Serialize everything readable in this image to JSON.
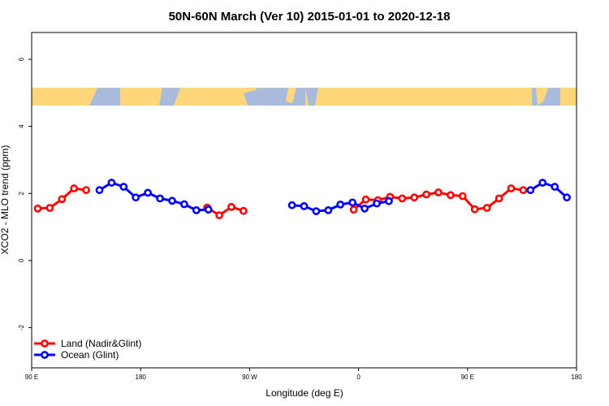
{
  "chart_data": {
    "type": "line",
    "title": "50N-60N March (Ver 10)   2015-01-01 to 2020-12-18",
    "xlabel": "Longitude (deg E)",
    "ylabel": "XCO2 - MLO trend (ppm)",
    "xlim": [
      90,
      540
    ],
    "ylim": [
      -3.2,
      6.8
    ],
    "xticks": [
      {
        "value": 90,
        "label": "90 E"
      },
      {
        "value": 180,
        "label": "180"
      },
      {
        "value": 270,
        "label": "90 W"
      },
      {
        "value": 360,
        "label": "0"
      },
      {
        "value": 450,
        "label": "90 E"
      },
      {
        "value": 540,
        "label": "180"
      }
    ],
    "yticks": [
      {
        "value": -2,
        "label": "-2"
      },
      {
        "value": 0,
        "label": "0"
      },
      {
        "value": 2,
        "label": "2"
      },
      {
        "value": 4,
        "label": "4"
      },
      {
        "value": 6,
        "label": "6"
      }
    ],
    "map_strip": {
      "ymin": 4.62,
      "ymax": 5.15,
      "ocean_color": "#a9bbdc",
      "land_color": "#ffd77a"
    },
    "series": [
      {
        "name": "Land (Nadir&Glint)",
        "color": "#ff0000",
        "segments": [
          [
            [
              95,
              1.55
            ],
            [
              105,
              1.57
            ],
            [
              115,
              1.83
            ],
            [
              125,
              2.15
            ],
            [
              135,
              2.1
            ]
          ],
          [
            [
              235,
              1.58
            ],
            [
              245,
              1.35
            ],
            [
              255,
              1.6
            ],
            [
              265,
              1.48
            ]
          ],
          [
            [
              356,
              1.52
            ],
            [
              366,
              1.82
            ],
            [
              376,
              1.8
            ],
            [
              386,
              1.9
            ],
            [
              396,
              1.85
            ],
            [
              406,
              1.88
            ],
            [
              416,
              1.97
            ],
            [
              426,
              2.03
            ],
            [
              436,
              1.95
            ],
            [
              446,
              1.92
            ],
            [
              456,
              1.53
            ],
            [
              466,
              1.57
            ],
            [
              476,
              1.85
            ],
            [
              486,
              2.15
            ],
            [
              496,
              2.1
            ]
          ]
        ]
      },
      {
        "name": "Ocean (Glint)",
        "color": "#0000ff",
        "segments": [
          [
            [
              146,
              2.1
            ],
            [
              156,
              2.32
            ],
            [
              166,
              2.2
            ],
            [
              176,
              1.88
            ],
            [
              186,
              2.02
            ],
            [
              196,
              1.85
            ],
            [
              206,
              1.78
            ],
            [
              216,
              1.68
            ],
            [
              226,
              1.5
            ],
            [
              236,
              1.52
            ]
          ],
          [
            [
              305,
              1.65
            ],
            [
              315,
              1.62
            ],
            [
              325,
              1.47
            ],
            [
              335,
              1.5
            ],
            [
              345,
              1.67
            ],
            [
              355,
              1.73
            ],
            [
              365,
              1.55
            ],
            [
              375,
              1.7
            ],
            [
              385,
              1.77
            ]
          ],
          [
            [
              502,
              2.1
            ],
            [
              512,
              2.32
            ],
            [
              522,
              2.2
            ],
            [
              532,
              1.88
            ]
          ]
        ]
      }
    ],
    "legend_position": "bottom-left"
  }
}
